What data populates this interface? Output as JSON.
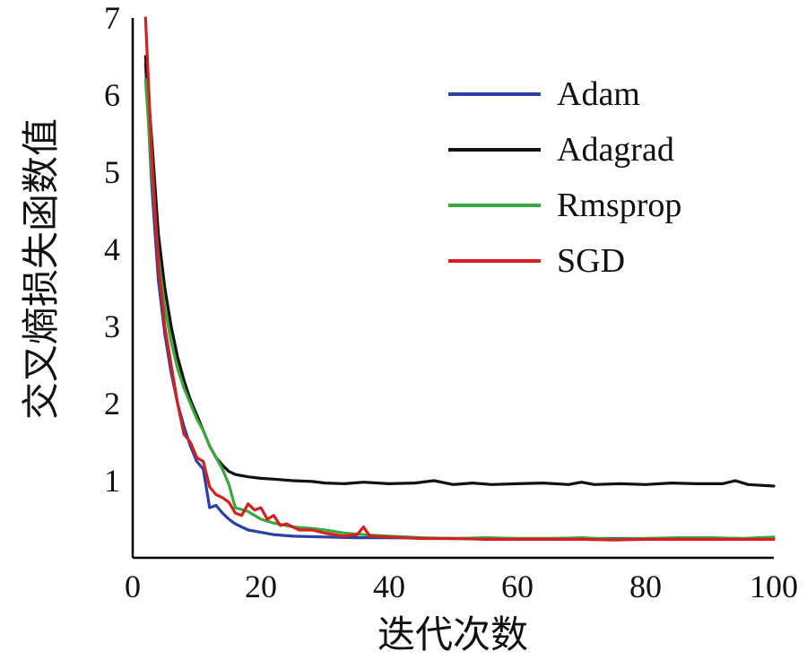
{
  "chart_data": {
    "type": "line",
    "title": "",
    "xlabel": "迭代次数",
    "ylabel": "交叉熵损失函数值",
    "xlim": [
      0,
      100
    ],
    "ylim": [
      0,
      7
    ],
    "x_ticks": [
      "0",
      "20",
      "40",
      "60",
      "80",
      "100"
    ],
    "y_ticks": [
      "1",
      "2",
      "3",
      "4",
      "5",
      "6",
      "7"
    ],
    "grid": false,
    "legend_position": "top-right",
    "series": [
      {
        "name": "Adam",
        "color": "#2b3fa8",
        "points": [
          [
            2,
            6.4
          ],
          [
            3,
            4.8
          ],
          [
            4,
            3.6
          ],
          [
            5,
            2.9
          ],
          [
            6,
            2.4
          ],
          [
            7,
            2.0
          ],
          [
            8,
            1.7
          ],
          [
            9,
            1.45
          ],
          [
            10,
            1.25
          ],
          [
            11,
            1.15
          ],
          [
            12,
            0.65
          ],
          [
            13,
            0.68
          ],
          [
            14,
            0.58
          ],
          [
            15,
            0.5
          ],
          [
            16,
            0.44
          ],
          [
            18,
            0.36
          ],
          [
            20,
            0.33
          ],
          [
            22,
            0.3
          ],
          [
            25,
            0.28
          ],
          [
            30,
            0.27
          ],
          [
            35,
            0.26
          ],
          [
            40,
            0.26
          ],
          [
            50,
            0.25
          ],
          [
            60,
            0.25
          ],
          [
            70,
            0.25
          ],
          [
            80,
            0.25
          ],
          [
            90,
            0.25
          ],
          [
            100,
            0.25
          ]
        ]
      },
      {
        "name": "Adagrad",
        "color": "#111111",
        "points": [
          [
            2,
            6.5
          ],
          [
            3,
            5.4
          ],
          [
            4,
            4.2
          ],
          [
            5,
            3.5
          ],
          [
            6,
            3.0
          ],
          [
            7,
            2.6
          ],
          [
            8,
            2.3
          ],
          [
            9,
            2.05
          ],
          [
            10,
            1.85
          ],
          [
            11,
            1.65
          ],
          [
            12,
            1.45
          ],
          [
            13,
            1.3
          ],
          [
            14,
            1.2
          ],
          [
            15,
            1.12
          ],
          [
            16,
            1.08
          ],
          [
            18,
            1.05
          ],
          [
            20,
            1.03
          ],
          [
            22,
            1.02
          ],
          [
            25,
            1.0
          ],
          [
            28,
            0.99
          ],
          [
            30,
            0.97
          ],
          [
            33,
            0.96
          ],
          [
            36,
            0.98
          ],
          [
            40,
            0.96
          ],
          [
            44,
            0.97
          ],
          [
            47,
            1.0
          ],
          [
            50,
            0.95
          ],
          [
            53,
            0.97
          ],
          [
            56,
            0.95
          ],
          [
            60,
            0.96
          ],
          [
            64,
            0.97
          ],
          [
            68,
            0.95
          ],
          [
            70,
            0.98
          ],
          [
            72,
            0.95
          ],
          [
            76,
            0.96
          ],
          [
            80,
            0.95
          ],
          [
            84,
            0.97
          ],
          [
            88,
            0.96
          ],
          [
            92,
            0.96
          ],
          [
            94,
            1.0
          ],
          [
            96,
            0.95
          ],
          [
            100,
            0.93
          ]
        ]
      },
      {
        "name": "Rmsprop",
        "color": "#3aa83a",
        "points": [
          [
            2,
            6.2
          ],
          [
            3,
            5.0
          ],
          [
            4,
            3.9
          ],
          [
            5,
            3.25
          ],
          [
            6,
            2.8
          ],
          [
            7,
            2.45
          ],
          [
            8,
            2.2
          ],
          [
            9,
            2.0
          ],
          [
            10,
            1.8
          ],
          [
            11,
            1.65
          ],
          [
            12,
            1.45
          ],
          [
            13,
            1.3
          ],
          [
            14,
            1.15
          ],
          [
            15,
            0.95
          ],
          [
            16,
            0.65
          ],
          [
            18,
            0.6
          ],
          [
            20,
            0.5
          ],
          [
            22,
            0.45
          ],
          [
            25,
            0.4
          ],
          [
            28,
            0.38
          ],
          [
            30,
            0.36
          ],
          [
            33,
            0.32
          ],
          [
            36,
            0.3
          ],
          [
            40,
            0.28
          ],
          [
            45,
            0.26
          ],
          [
            50,
            0.25
          ],
          [
            55,
            0.26
          ],
          [
            60,
            0.25
          ],
          [
            65,
            0.25
          ],
          [
            70,
            0.26
          ],
          [
            75,
            0.24
          ],
          [
            80,
            0.25
          ],
          [
            85,
            0.26
          ],
          [
            90,
            0.26
          ],
          [
            95,
            0.25
          ],
          [
            100,
            0.27
          ]
        ]
      },
      {
        "name": "SGD",
        "color": "#d42020",
        "points": [
          [
            2,
            7.0
          ],
          [
            3,
            5.2
          ],
          [
            4,
            3.8
          ],
          [
            5,
            3.0
          ],
          [
            6,
            2.5
          ],
          [
            7,
            2.0
          ],
          [
            8,
            1.6
          ],
          [
            9,
            1.5
          ],
          [
            10,
            1.3
          ],
          [
            11,
            1.25
          ],
          [
            12,
            0.92
          ],
          [
            13,
            0.82
          ],
          [
            14,
            0.78
          ],
          [
            15,
            0.72
          ],
          [
            16,
            0.58
          ],
          [
            17,
            0.55
          ],
          [
            18,
            0.7
          ],
          [
            19,
            0.62
          ],
          [
            20,
            0.65
          ],
          [
            21,
            0.5
          ],
          [
            22,
            0.55
          ],
          [
            23,
            0.42
          ],
          [
            24,
            0.44
          ],
          [
            26,
            0.36
          ],
          [
            28,
            0.36
          ],
          [
            30,
            0.32
          ],
          [
            33,
            0.28
          ],
          [
            35,
            0.3
          ],
          [
            36,
            0.4
          ],
          [
            37,
            0.28
          ],
          [
            40,
            0.27
          ],
          [
            45,
            0.25
          ],
          [
            50,
            0.25
          ],
          [
            55,
            0.24
          ],
          [
            60,
            0.24
          ],
          [
            65,
            0.24
          ],
          [
            70,
            0.24
          ],
          [
            75,
            0.23
          ],
          [
            80,
            0.24
          ],
          [
            85,
            0.24
          ],
          [
            90,
            0.24
          ],
          [
            95,
            0.24
          ],
          [
            100,
            0.24
          ]
        ]
      }
    ]
  }
}
